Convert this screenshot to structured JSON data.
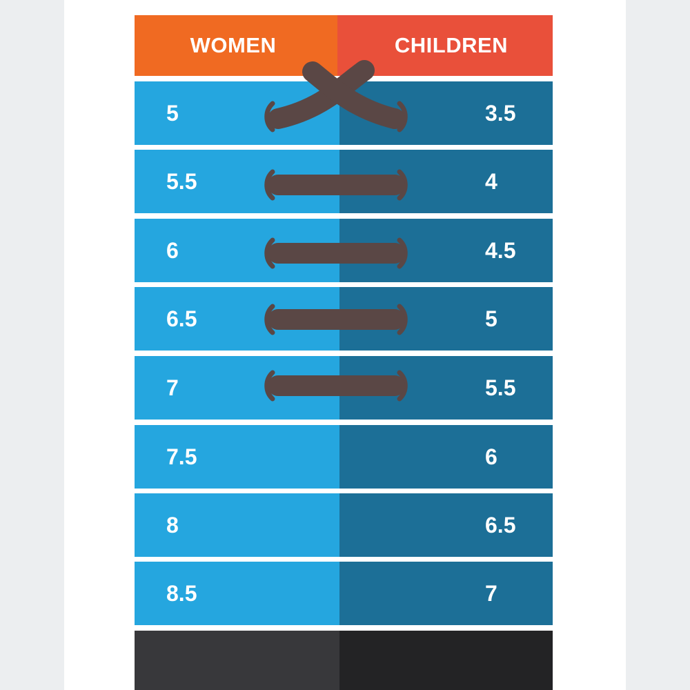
{
  "header": {
    "left_label": "WOMEN",
    "right_label": "CHILDREN"
  },
  "rows": [
    {
      "women": "5",
      "children": "3.5"
    },
    {
      "women": "5.5",
      "children": "4"
    },
    {
      "women": "6",
      "children": "4.5"
    },
    {
      "women": "6.5",
      "children": "5"
    },
    {
      "women": "7",
      "children": "5.5"
    },
    {
      "women": "7.5",
      "children": "6"
    },
    {
      "women": "8",
      "children": "6.5"
    },
    {
      "women": "8.5",
      "children": "7"
    }
  ],
  "colors": {
    "women_header": "#f06a22",
    "children_header": "#e9503a",
    "women_column": "#25a6df",
    "children_column": "#1c6f97",
    "lace": "#5a4745",
    "sole_left": "#38383b",
    "sole_right": "#232325"
  },
  "icons": {
    "lace": "shoelace-icon",
    "eyelet": "eyelet-icon"
  }
}
